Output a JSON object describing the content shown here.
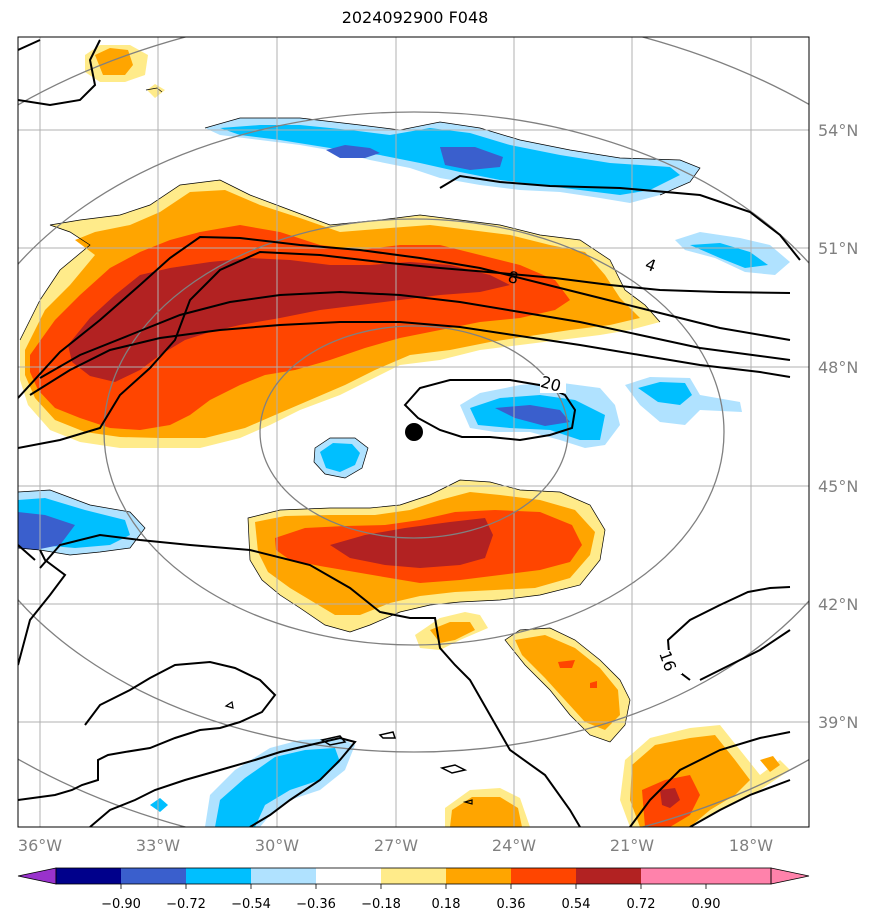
{
  "title": "2024092900 F048",
  "lon_labels": [
    "36°W",
    "33°W",
    "30°W",
    "27°W",
    "24°W",
    "21°W",
    "18°W"
  ],
  "lat_labels": [
    "54°N",
    "51°N",
    "48°N",
    "45°N",
    "42°N",
    "39°N"
  ],
  "contour_labels": [
    "4",
    "8",
    "20",
    "16"
  ],
  "colorbar": {
    "colors": [
      "#9932cc",
      "#00008b",
      "#3a5fcd",
      "#00bfff",
      "#b0e2ff",
      "#ffffff",
      "#ffeb8a",
      "#ffa500",
      "#ff4500",
      "#b22222",
      "#ff82ab"
    ],
    "tick_labels": [
      "−0.90",
      "−0.72",
      "−0.54",
      "−0.36",
      "−0.18",
      "0.18",
      "0.36",
      "0.54",
      "0.72",
      "0.90"
    ]
  },
  "storm_center": {
    "lon": "26.5°W",
    "lat": "46.3°N"
  }
}
